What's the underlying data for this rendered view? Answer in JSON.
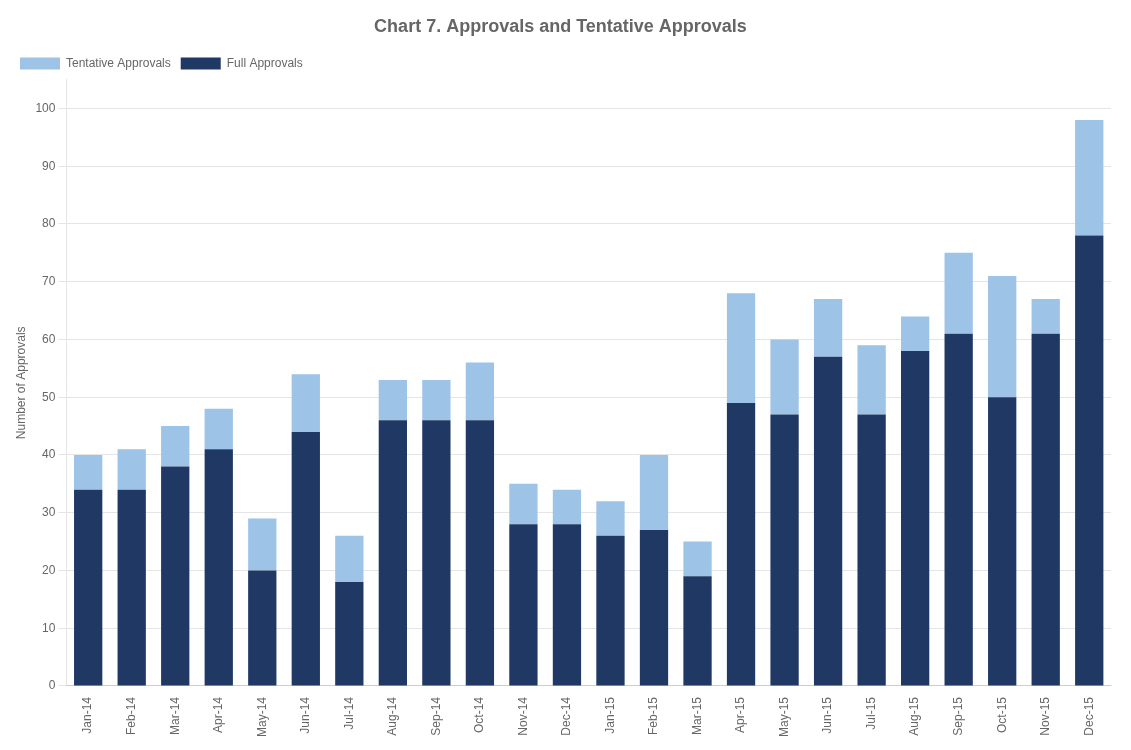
{
  "chart_data": {
    "type": "bar",
    "title": "Chart 7. Approvals and Tentative Approvals",
    "ylabel": "Number of Approvals",
    "categories": [
      "Jan-14",
      "Feb-14",
      "Mar-14",
      "Apr-14",
      "May-14",
      "Jun-14",
      "Jul-14",
      "Aug-14",
      "Sep-14",
      "Oct-14",
      "Nov-14",
      "Dec-14",
      "Jan-15",
      "Feb-15",
      "Mar-15",
      "Apr-15",
      "May-15",
      "Jun-15",
      "Jul-15",
      "Aug-15",
      "Sep-15",
      "Oct-15",
      "Nov-15",
      "Dec-15"
    ],
    "series": [
      {
        "name": "Full Approvals",
        "color": "#1F3864",
        "values": [
          34,
          34,
          38,
          41,
          20,
          44,
          18,
          46,
          46,
          46,
          28,
          28,
          26,
          27,
          19,
          49,
          47,
          57,
          47,
          58,
          61,
          50,
          61,
          78
        ]
      },
      {
        "name": "Tentative Approvals",
        "color": "#9DC3E6",
        "values": [
          6,
          7,
          7,
          7,
          9,
          10,
          8,
          7,
          7,
          10,
          7,
          6,
          6,
          13,
          6,
          19,
          13,
          10,
          12,
          6,
          14,
          21,
          6,
          20
        ]
      }
    ],
    "stacked": true,
    "ylim": [
      0,
      105
    ],
    "yticks": [
      0,
      10,
      20,
      30,
      40,
      50,
      60,
      70,
      80,
      90,
      100
    ],
    "grid": true,
    "legend": "upper left"
  }
}
